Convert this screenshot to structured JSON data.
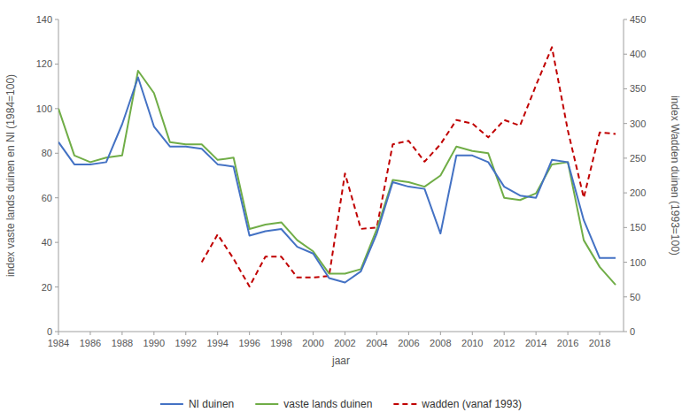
{
  "chart_data": {
    "type": "line",
    "xlabel": "jaar",
    "ylabel": "index vaste lands duinen en NI (1984=100)",
    "y2label": "index Wadden duinen (1993=100)",
    "x": [
      1984,
      1985,
      1986,
      1987,
      1988,
      1989,
      1990,
      1991,
      1992,
      1993,
      1994,
      1995,
      1996,
      1997,
      1998,
      1999,
      2000,
      2001,
      2002,
      2003,
      2004,
      2005,
      2006,
      2007,
      2008,
      2009,
      2010,
      2011,
      2012,
      2013,
      2014,
      2015,
      2016,
      2017,
      2018,
      2019
    ],
    "xlim": [
      1984,
      2019.5
    ],
    "xticks": [
      1984,
      1986,
      1988,
      1990,
      1992,
      1994,
      1996,
      1998,
      2000,
      2002,
      2004,
      2006,
      2008,
      2010,
      2012,
      2014,
      2016,
      2018
    ],
    "ylim": [
      0,
      140
    ],
    "yticks": [
      0,
      20,
      40,
      60,
      80,
      100,
      120,
      140
    ],
    "y2lim": [
      0,
      450
    ],
    "y2ticks": [
      0,
      50,
      100,
      150,
      200,
      250,
      300,
      350,
      400,
      450
    ],
    "grid": false,
    "legend": "bottom",
    "series": [
      {
        "name": "NI duinen",
        "color": "#4472C4",
        "line_style": "solid",
        "values": [
          85,
          75,
          75,
          76,
          93,
          114,
          92,
          83,
          83,
          82,
          75,
          74,
          43,
          45,
          46,
          38,
          35,
          24,
          22,
          27,
          44,
          67,
          65,
          64,
          44,
          79,
          79,
          76,
          65,
          61,
          60,
          77,
          76,
          50,
          33,
          33
        ]
      },
      {
        "name": "vaste lands duinen",
        "color": "#70AD47",
        "line_style": "solid",
        "values": [
          100,
          79,
          76,
          78,
          79,
          117,
          107,
          85,
          84,
          84,
          77,
          78,
          46,
          48,
          49,
          41,
          36,
          26,
          26,
          28,
          46,
          68,
          67,
          65,
          70,
          83,
          81,
          80,
          60,
          59,
          62,
          75,
          76,
          41,
          29,
          21
        ]
      },
      {
        "name": "wadden (vanaf 1993)",
        "color": "#C00000",
        "line_style": "dashed",
        "axis": "y2",
        "values": [
          null,
          null,
          null,
          null,
          null,
          null,
          null,
          null,
          null,
          100,
          140,
          105,
          65,
          108,
          108,
          78,
          78,
          80,
          228,
          148,
          150,
          270,
          275,
          245,
          270,
          305,
          300,
          280,
          305,
          297,
          355,
          410,
          290,
          193,
          287,
          285
        ]
      }
    ]
  }
}
